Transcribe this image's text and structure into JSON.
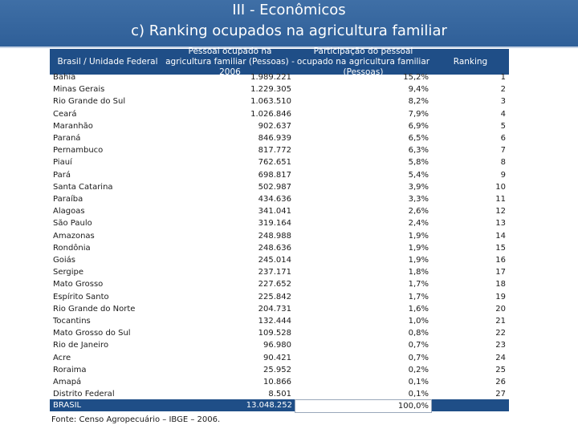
{
  "header": {
    "line1": "III - Econômicos",
    "line2": "c) Ranking ocupados na agricultura familiar"
  },
  "columns": {
    "state": "Brasil / Unidade Federal",
    "pop": "Pessoal ocupado na agricultura familiar (Pessoas) - 2006",
    "share": "Participação do pessoal ocupado na agricultura familiar (Pessoas)",
    "rank": "Ranking"
  },
  "rows": [
    {
      "state": "Bahia",
      "pop": "1.989.221",
      "share": "15,2%",
      "rank": "1"
    },
    {
      "state": "Minas Gerais",
      "pop": "1.229.305",
      "share": "9,4%",
      "rank": "2"
    },
    {
      "state": "Rio Grande do Sul",
      "pop": "1.063.510",
      "share": "8,2%",
      "rank": "3"
    },
    {
      "state": "Ceará",
      "pop": "1.026.846",
      "share": "7,9%",
      "rank": "4"
    },
    {
      "state": "Maranhão",
      "pop": "902.637",
      "share": "6,9%",
      "rank": "5"
    },
    {
      "state": "Paraná",
      "pop": "846.939",
      "share": "6,5%",
      "rank": "6"
    },
    {
      "state": "Pernambuco",
      "pop": "817.772",
      "share": "6,3%",
      "rank": "7"
    },
    {
      "state": "Piauí",
      "pop": "762.651",
      "share": "5,8%",
      "rank": "8"
    },
    {
      "state": "Pará",
      "pop": "698.817",
      "share": "5,4%",
      "rank": "9"
    },
    {
      "state": "Santa Catarina",
      "pop": "502.987",
      "share": "3,9%",
      "rank": "10"
    },
    {
      "state": "Paraíba",
      "pop": "434.636",
      "share": "3,3%",
      "rank": "11"
    },
    {
      "state": "Alagoas",
      "pop": "341.041",
      "share": "2,6%",
      "rank": "12"
    },
    {
      "state": "São Paulo",
      "pop": "319.164",
      "share": "2,4%",
      "rank": "13"
    },
    {
      "state": "Amazonas",
      "pop": "248.988",
      "share": "1,9%",
      "rank": "14"
    },
    {
      "state": "Rondônia",
      "pop": "248.636",
      "share": "1,9%",
      "rank": "15"
    },
    {
      "state": "Goiás",
      "pop": "245.014",
      "share": "1,9%",
      "rank": "16"
    },
    {
      "state": "Sergipe",
      "pop": "237.171",
      "share": "1,8%",
      "rank": "17"
    },
    {
      "state": "Mato Grosso",
      "pop": "227.652",
      "share": "1,7%",
      "rank": "18"
    },
    {
      "state": "Espírito Santo",
      "pop": "225.842",
      "share": "1,7%",
      "rank": "19"
    },
    {
      "state": "Rio Grande do Norte",
      "pop": "204.731",
      "share": "1,6%",
      "rank": "20"
    },
    {
      "state": "Tocantins",
      "pop": "132.444",
      "share": "1,0%",
      "rank": "21"
    },
    {
      "state": "Mato Grosso do Sul",
      "pop": "109.528",
      "share": "0,8%",
      "rank": "22"
    },
    {
      "state": "Rio de Janeiro",
      "pop": "96.980",
      "share": "0,7%",
      "rank": "23"
    },
    {
      "state": "Acre",
      "pop": "90.421",
      "share": "0,7%",
      "rank": "24"
    },
    {
      "state": "Roraima",
      "pop": "25.952",
      "share": "0,2%",
      "rank": "25"
    },
    {
      "state": "Amapá",
      "pop": "10.866",
      "share": "0,1%",
      "rank": "26"
    },
    {
      "state": "Distrito Federal",
      "pop": "8.501",
      "share": "0,1%",
      "rank": "27"
    }
  ],
  "total": {
    "state": "BRASIL",
    "pop": "13.048.252",
    "share": "100,0%"
  },
  "source": "Fonte: Censo Agropecuário – IBGE – 2006."
}
